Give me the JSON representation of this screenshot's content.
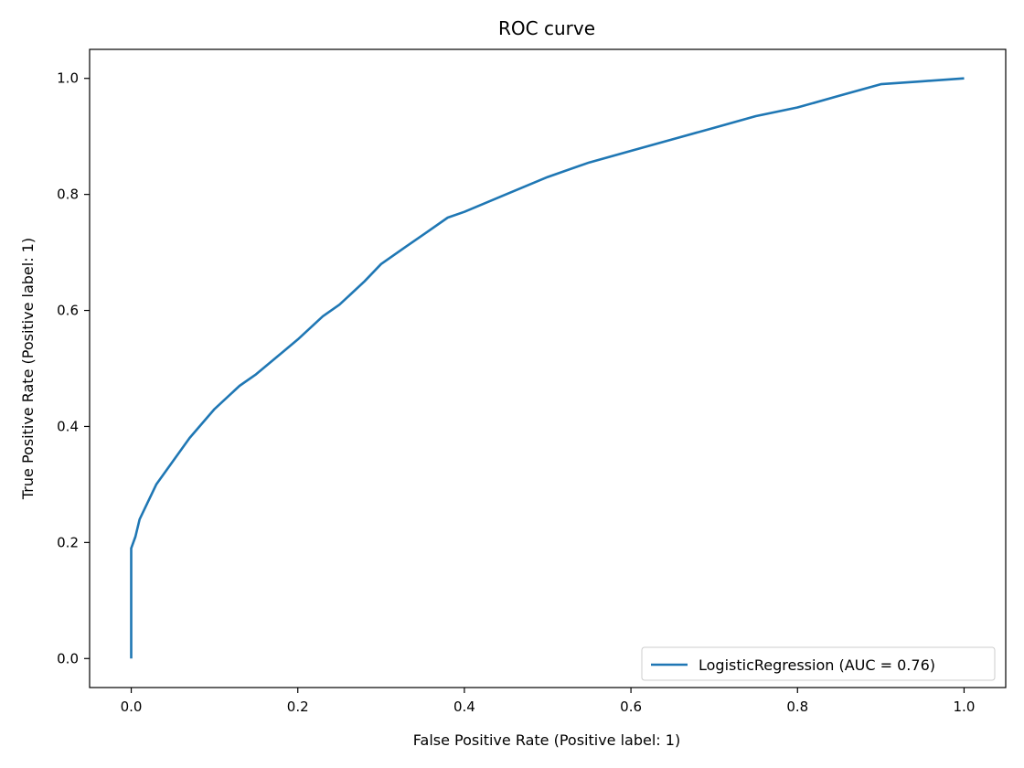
{
  "chart_data": {
    "type": "line",
    "title": "ROC curve",
    "xlabel": "False Positive Rate (Positive label: 1)",
    "ylabel": "True Positive Rate (Positive label: 1)",
    "xlim": [
      -0.05,
      1.05
    ],
    "ylim": [
      -0.05,
      1.05
    ],
    "xticks": [
      "0.0",
      "0.2",
      "0.4",
      "0.6",
      "0.8",
      "1.0"
    ],
    "yticks": [
      "0.0",
      "0.2",
      "0.4",
      "0.6",
      "0.8",
      "1.0"
    ],
    "grid": false,
    "legend_position": "lower-right",
    "series": [
      {
        "name": "LogisticRegression (AUC = 0.76)",
        "color": "#1f77b4",
        "x": [
          0.0,
          0.0,
          0.0,
          0.005,
          0.01,
          0.02,
          0.03,
          0.05,
          0.07,
          0.1,
          0.13,
          0.15,
          0.2,
          0.23,
          0.25,
          0.28,
          0.3,
          0.33,
          0.35,
          0.38,
          0.4,
          0.45,
          0.5,
          0.55,
          0.6,
          0.65,
          0.7,
          0.75,
          0.8,
          0.85,
          0.9,
          0.95,
          1.0
        ],
        "y": [
          0.0,
          0.15,
          0.19,
          0.21,
          0.24,
          0.27,
          0.3,
          0.34,
          0.38,
          0.43,
          0.47,
          0.49,
          0.55,
          0.59,
          0.61,
          0.65,
          0.68,
          0.71,
          0.73,
          0.76,
          0.77,
          0.8,
          0.83,
          0.855,
          0.875,
          0.895,
          0.915,
          0.935,
          0.95,
          0.97,
          0.99,
          0.995,
          1.0
        ]
      }
    ]
  }
}
